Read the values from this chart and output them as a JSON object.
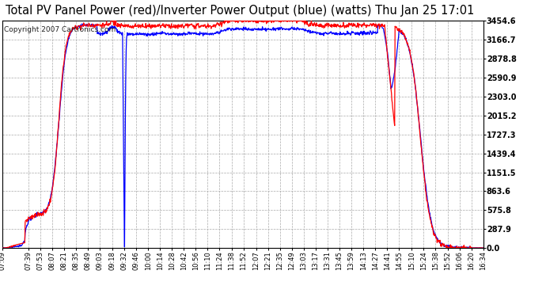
{
  "title": "Total PV Panel Power (red)/Inverter Power Output (blue) (watts) Thu Jan 25 17:01",
  "copyright": "Copyright 2007 Cartronics.com",
  "title_fontsize": 10.5,
  "copyright_fontsize": 6.5,
  "yticks": [
    0.0,
    287.9,
    575.8,
    863.6,
    1151.5,
    1439.4,
    1727.3,
    2015.2,
    2303.0,
    2590.9,
    2878.8,
    3166.7,
    3454.6
  ],
  "ymax": 3454.6,
  "ymin": 0.0,
  "red_color": "#ff0000",
  "blue_color": "#0000ff",
  "bg_color": "#ffffff",
  "fig_bg": "#ffffff",
  "grid_color": "#aaaaaa",
  "title_color": "#000000",
  "copyright_color": "#222222",
  "tick_label_color": "#000000",
  "xtick_labels": [
    "07:09",
    "07:39",
    "07:53",
    "08:07",
    "08:21",
    "08:35",
    "08:49",
    "09:03",
    "09:18",
    "09:32",
    "09:46",
    "10:00",
    "10:14",
    "10:28",
    "10:42",
    "10:56",
    "11:10",
    "11:24",
    "11:38",
    "11:52",
    "12:07",
    "12:21",
    "12:35",
    "12:49",
    "13:03",
    "13:17",
    "13:31",
    "13:45",
    "13:59",
    "14:13",
    "14:27",
    "14:41",
    "14:55",
    "15:10",
    "15:24",
    "15:38",
    "15:52",
    "16:06",
    "16:20",
    "16:34"
  ]
}
